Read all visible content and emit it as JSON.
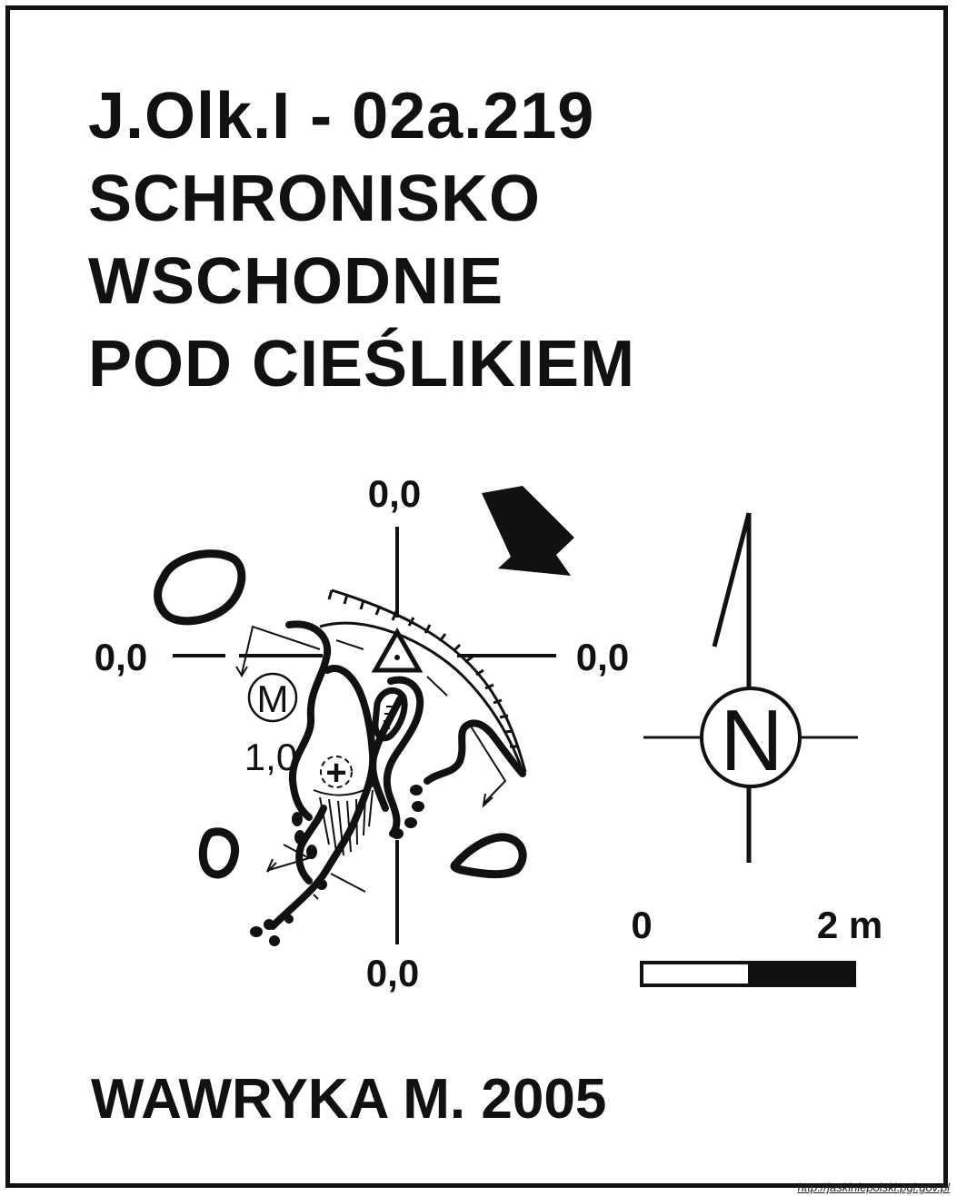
{
  "title": {
    "code": "J.Olk.I - 02a.219",
    "name_line1": "SCHRONISKO",
    "name_line2": "WSCHODNIE",
    "name_line3": "POD CIEŚLIKIEM"
  },
  "levels": {
    "top": "0,0",
    "left": "0,0",
    "right": "0,0",
    "bottom": "0,0",
    "inner": "1,0"
  },
  "symbols": {
    "marker": "M",
    "north": "N",
    "cross": "+"
  },
  "scale": {
    "start": "0",
    "end": "2 m"
  },
  "author": "WAWRYKA M. 2005",
  "source": "http://jaskiniepolski.pgi.gov.pl",
  "colors": {
    "ink": "#111111",
    "paper": "#ffffff"
  }
}
